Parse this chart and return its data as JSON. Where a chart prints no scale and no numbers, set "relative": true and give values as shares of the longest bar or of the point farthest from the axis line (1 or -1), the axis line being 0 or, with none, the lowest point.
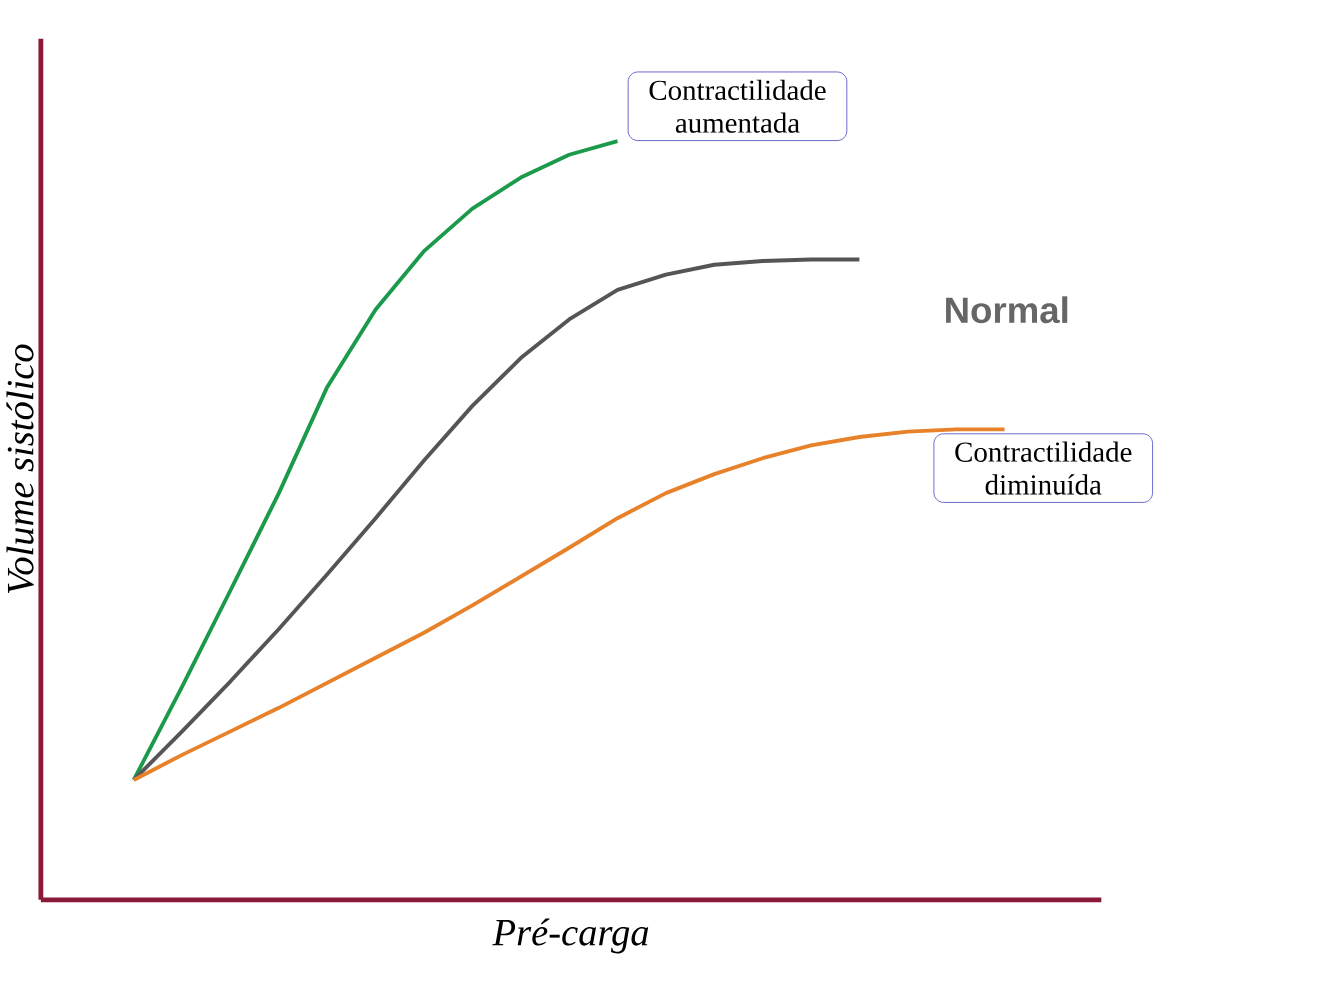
{
  "chart_data": {
    "type": "line",
    "relative": true,
    "xlabel": "Pré-carga",
    "ylabel": "Volume sistólico",
    "marker": "none",
    "categories": [
      null,
      null,
      null,
      null,
      null,
      null,
      null,
      null,
      null,
      null,
      null,
      null,
      null,
      null,
      null,
      null,
      null,
      null,
      null
    ],
    "series": [
      {
        "name": "Contractilidade aumentada",
        "color": "#1a9a4a",
        "values": [
          0.158,
          0.281,
          0.408,
          0.536,
          0.676,
          0.778,
          0.855,
          0.911,
          0.952,
          0.982,
          1.0,
          null,
          null,
          null,
          null,
          null,
          null,
          null,
          null
        ]
      },
      {
        "name": "Normal",
        "color": "#555555",
        "values": [
          0.158,
          0.222,
          0.288,
          0.357,
          0.429,
          0.503,
          0.579,
          0.651,
          0.714,
          0.765,
          0.804,
          0.824,
          0.837,
          0.842,
          0.844,
          0.844,
          null,
          null,
          null
        ]
      },
      {
        "name": "Contractilidade diminuída",
        "color": "#e8822a",
        "values": [
          0.158,
          0.191,
          0.222,
          0.253,
          0.286,
          0.319,
          0.352,
          0.388,
          0.426,
          0.464,
          0.503,
          0.536,
          0.561,
          0.582,
          0.599,
          0.61,
          0.617,
          0.62,
          0.62
        ]
      }
    ]
  }
}
